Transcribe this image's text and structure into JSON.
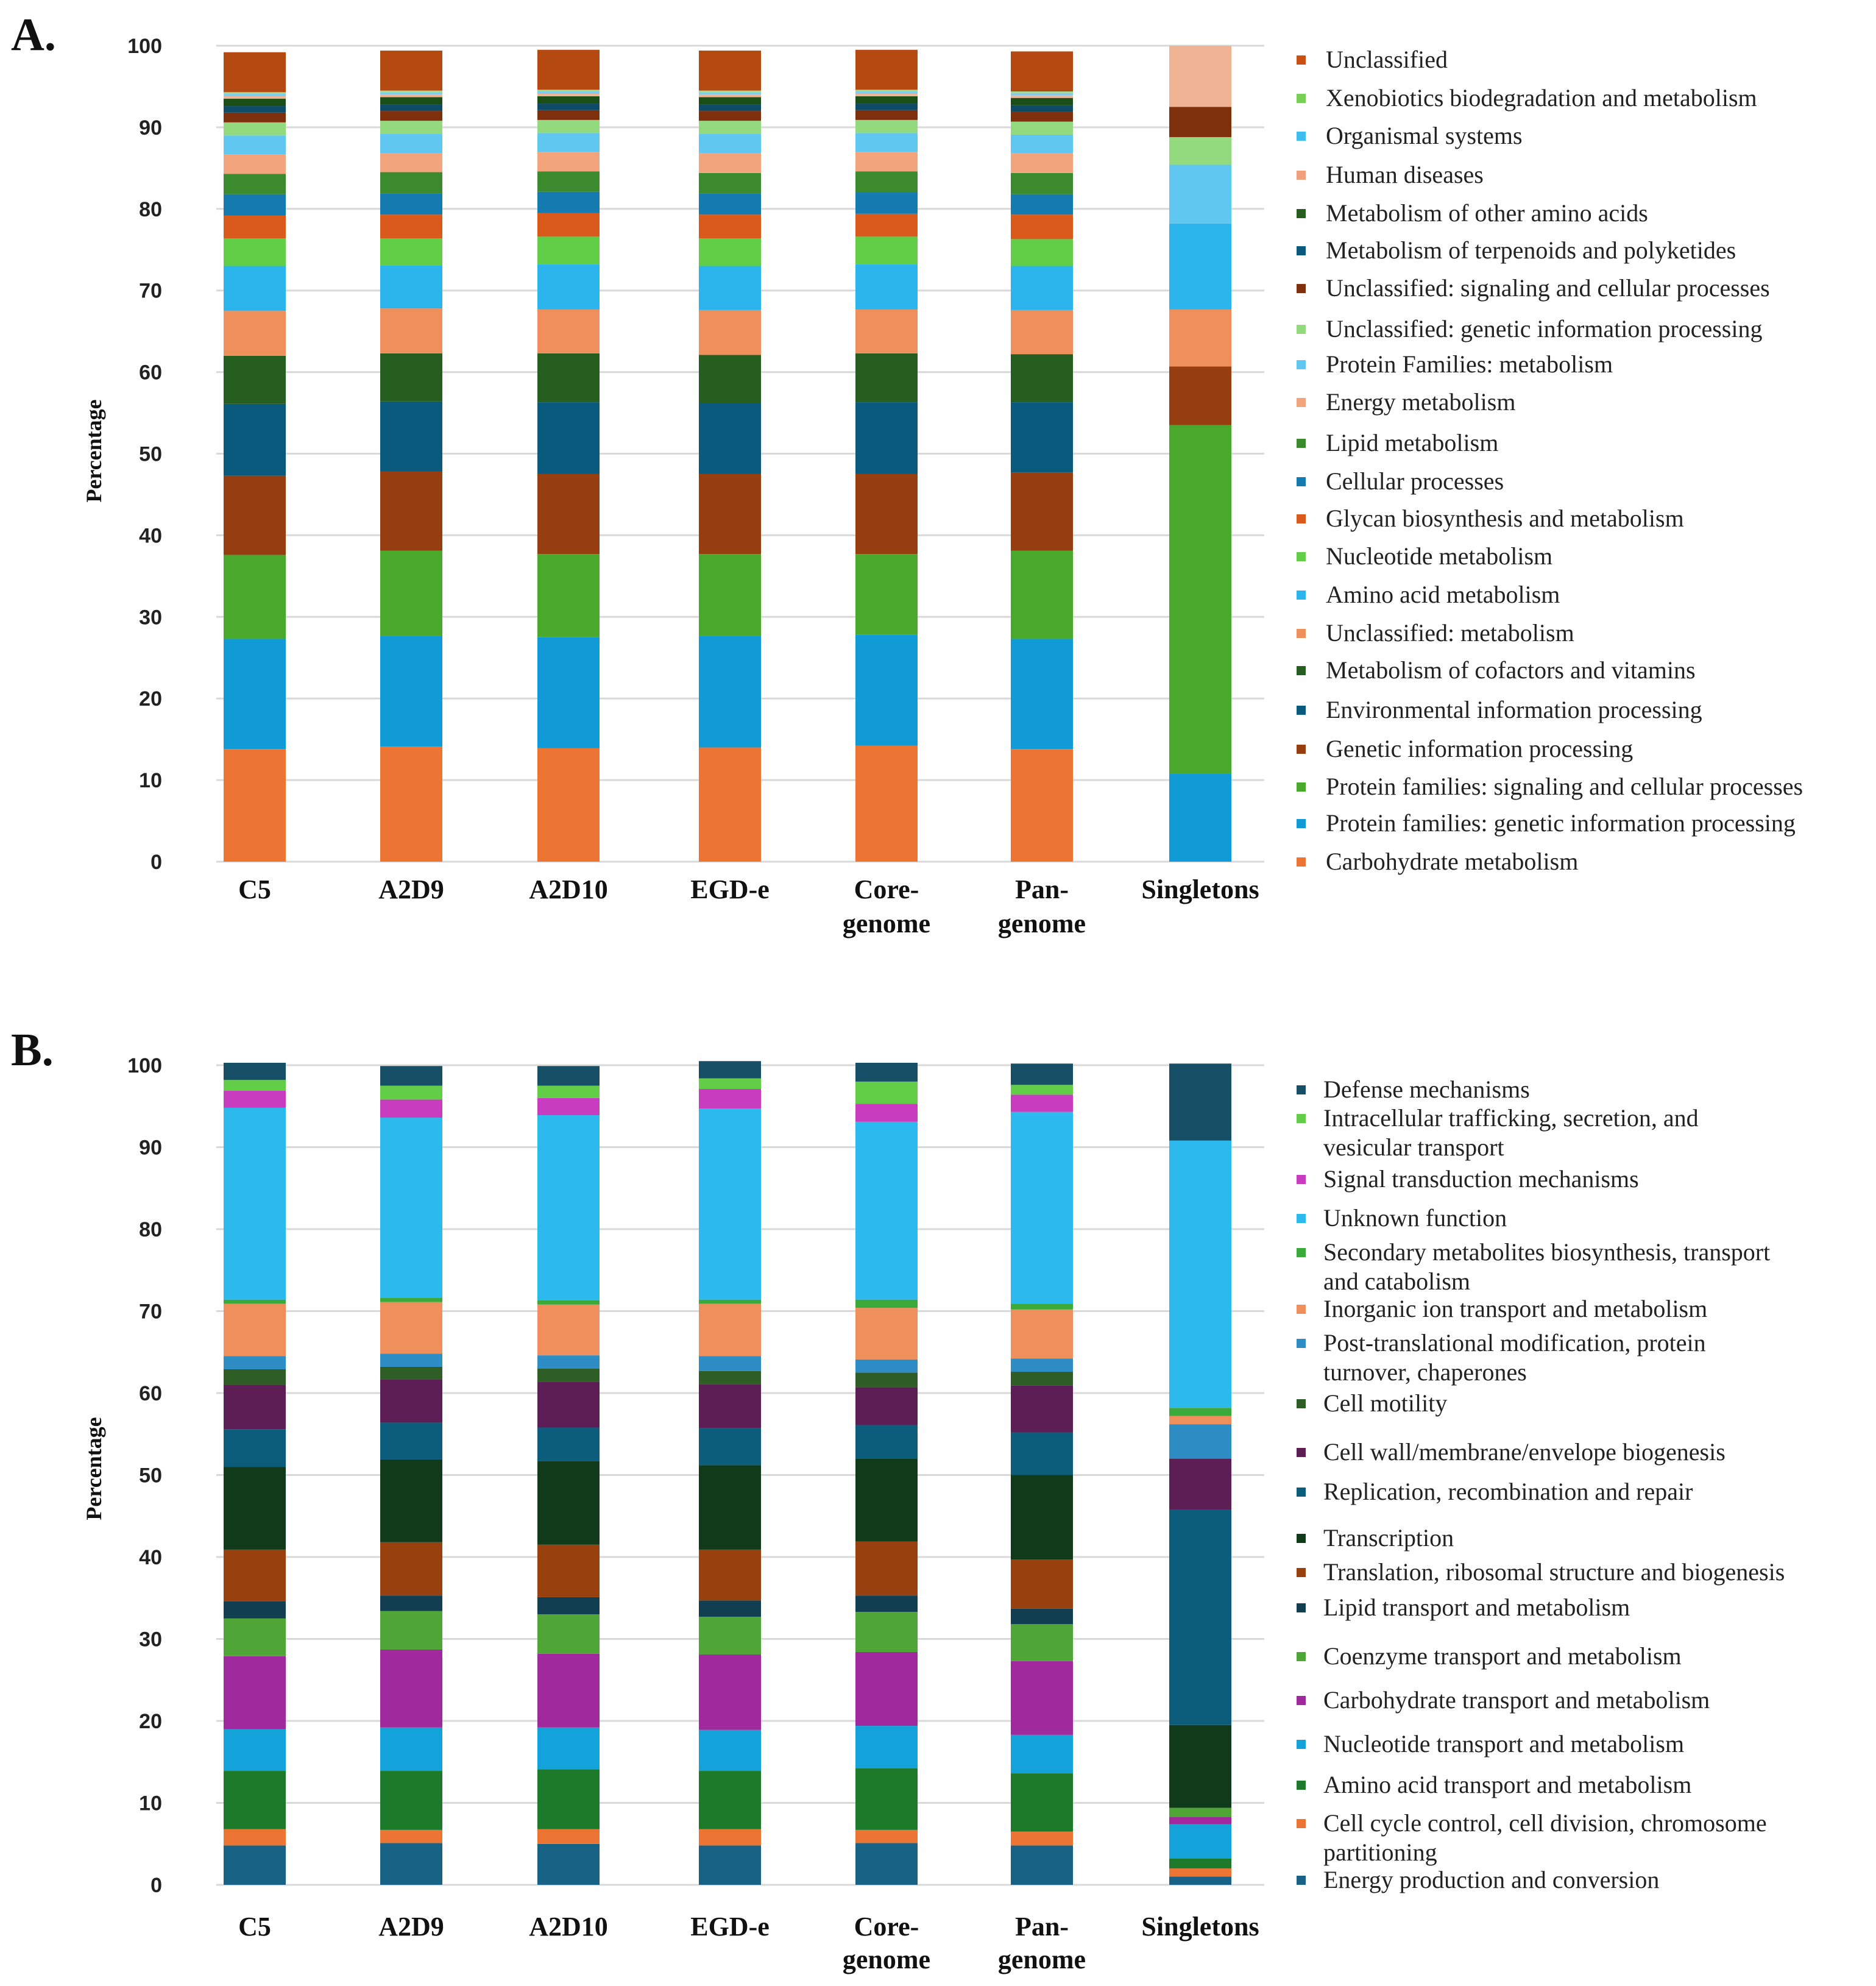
{
  "chart_data": [
    {
      "type": "bar",
      "stacked": true,
      "panel_label": "A.",
      "ylabel": "Percentage",
      "ylim": [
        0,
        100
      ],
      "yticks": [
        "0",
        "10",
        "20",
        "30",
        "40",
        "50",
        "60",
        "70",
        "80",
        "90",
        "100"
      ],
      "grid": true,
      "legend_position": "right",
      "categories": [
        {
          "line1": "C5",
          "line2": ""
        },
        {
          "line1": "A2D9",
          "line2": ""
        },
        {
          "line1": "A2D10",
          "line2": ""
        },
        {
          "line1": "EGD-e",
          "line2": ""
        },
        {
          "line1": "Core-",
          "line2": "genome"
        },
        {
          "line1": "Pan-",
          "line2": "genome"
        },
        {
          "line1": "Singletons",
          "line2": ""
        }
      ],
      "series": [
        {
          "name": "Carbohydrate metabolism",
          "color": "#EC7533",
          "values": [
            13.8,
            14.1,
            13.9,
            14.0,
            14.2,
            13.8,
            0
          ]
        },
        {
          "name": "Protein families: genetic information processing",
          "color": "#119BD6",
          "values": [
            13.5,
            13.6,
            13.6,
            13.7,
            13.6,
            13.5,
            10.8
          ]
        },
        {
          "name": "Protein families: signaling and cellular processes",
          "color": "#4AA82C",
          "values": [
            10.3,
            10.4,
            10.2,
            10.0,
            9.9,
            10.8,
            42.7
          ]
        },
        {
          "name": "Genetic information processing",
          "color": "#963E10",
          "values": [
            9.7,
            9.7,
            9.8,
            9.8,
            9.8,
            9.6,
            7.2
          ]
        },
        {
          "name": "Environmental information processing",
          "color": "#0A5A7E",
          "values": [
            8.8,
            8.6,
            8.8,
            8.7,
            8.8,
            8.6,
            0
          ]
        },
        {
          "name": "Metabolism of cofactors and vitamins",
          "color": "#255E1E",
          "values": [
            5.9,
            5.9,
            6.0,
            5.9,
            6.0,
            5.9,
            0
          ]
        },
        {
          "name": "Unclassified: metabolism",
          "color": "#EE8F5C",
          "values": [
            5.5,
            5.5,
            5.4,
            5.5,
            5.4,
            5.4,
            7.0
          ]
        },
        {
          "name": "Amino acid metabolism",
          "color": "#2BB5EC",
          "values": [
            5.5,
            5.3,
            5.5,
            5.4,
            5.5,
            5.4,
            10.5
          ]
        },
        {
          "name": "Nucleotide metabolism",
          "color": "#62CD47",
          "values": [
            3.4,
            3.3,
            3.4,
            3.4,
            3.4,
            3.3,
            0
          ]
        },
        {
          "name": "Glycan biosynthesis and metabolism",
          "color": "#D95A1A",
          "values": [
            2.8,
            2.9,
            2.9,
            2.9,
            2.8,
            3.0,
            0
          ]
        },
        {
          "name": "Cellular processes",
          "color": "#157AB0",
          "values": [
            2.6,
            2.6,
            2.6,
            2.6,
            2.6,
            2.5,
            0
          ]
        },
        {
          "name": "Lipid metabolism",
          "color": "#3C8A2E",
          "values": [
            2.5,
            2.6,
            2.5,
            2.5,
            2.6,
            2.6,
            0
          ]
        },
        {
          "name": "Energy metabolism",
          "color": "#F2A47C",
          "values": [
            2.4,
            2.3,
            2.4,
            2.4,
            2.4,
            2.4,
            0
          ]
        },
        {
          "name": "Protein Families: metabolism",
          "color": "#60C8F0",
          "values": [
            2.3,
            2.4,
            2.3,
            2.4,
            2.3,
            2.3,
            7.2
          ]
        },
        {
          "name": "Unclassified: genetic information processing",
          "color": "#93D97D",
          "values": [
            1.6,
            1.6,
            1.6,
            1.6,
            1.6,
            1.6,
            3.4
          ]
        },
        {
          "name": "Unclassified: signaling and cellular processes",
          "color": "#7E2F0C",
          "values": [
            1.2,
            1.2,
            1.2,
            1.2,
            1.2,
            1.2,
            3.7
          ]
        },
        {
          "name": "Metabolism of terpenoids and polyketides",
          "color": "#0E4B66",
          "values": [
            0.8,
            0.8,
            0.8,
            0.8,
            0.8,
            0.8,
            0
          ]
        },
        {
          "name": "Metabolism of other amino acids",
          "color": "#1B4D16",
          "values": [
            0.9,
            0.9,
            0.9,
            0.9,
            0.9,
            0.9,
            0
          ]
        },
        {
          "name": "Human diseases",
          "color": "#F0B394",
          "values": [
            0.3,
            0.3,
            0.3,
            0.3,
            0.3,
            0.3,
            7.5
          ]
        },
        {
          "name": "Organismal systems",
          "color": "#80CCEB",
          "values": [
            0.3,
            0.3,
            0.3,
            0.3,
            0.3,
            0.3,
            0
          ]
        },
        {
          "name": "Xenobiotics biodegradation and metabolism",
          "color": "#A6DA8C",
          "values": [
            0.2,
            0.2,
            0.2,
            0.2,
            0.2,
            0.2,
            0
          ]
        },
        {
          "name": "Unclassified",
          "color": "#B44A12",
          "values": [
            4.9,
            4.9,
            4.9,
            4.9,
            4.9,
            4.9,
            0
          ]
        }
      ]
    },
    {
      "type": "bar",
      "stacked": true,
      "panel_label": "B.",
      "ylabel": "Percentage",
      "ylim": [
        0,
        100
      ],
      "yticks": [
        "0",
        "10",
        "20",
        "30",
        "40",
        "50",
        "60",
        "70",
        "80",
        "90",
        "100"
      ],
      "grid": true,
      "legend_position": "right",
      "categories": [
        {
          "line1": "C5",
          "line2": ""
        },
        {
          "line1": "A2D9",
          "line2": ""
        },
        {
          "line1": "A2D10",
          "line2": ""
        },
        {
          "line1": "EGD-e",
          "line2": ""
        },
        {
          "line1": "Core-",
          "line2": "genome"
        },
        {
          "line1": "Pan-",
          "line2": "genome"
        },
        {
          "line1": "Singletons",
          "line2": ""
        }
      ],
      "series": [
        {
          "name": "Energy production and conversion",
          "color": "#176285",
          "values": [
            4.8,
            5.1,
            5.0,
            4.8,
            5.1,
            4.8,
            1.0
          ]
        },
        {
          "name": "Cell cycle control, cell division, chromosome partitioning",
          "color": "#EC7533",
          "values": [
            2.0,
            1.6,
            1.8,
            2.0,
            1.6,
            1.7,
            1.0
          ]
        },
        {
          "name": "Amino acid transport and metabolism",
          "color": "#1E7A2B",
          "values": [
            7.1,
            7.2,
            7.3,
            7.1,
            7.5,
            7.1,
            1.2
          ]
        },
        {
          "name": "Nucleotide transport and metabolism",
          "color": "#13A2DA",
          "values": [
            5.1,
            5.3,
            5.1,
            5.0,
            5.2,
            4.7,
            4.2
          ]
        },
        {
          "name": "Carbohydrate  transport  and  metabolism",
          "color": "#A0299E",
          "values": [
            8.9,
            9.5,
            9.0,
            9.2,
            9.0,
            9.0,
            0.9
          ]
        },
        {
          "name": "Coenzyme transport and metabolism",
          "color": "#4FA637",
          "values": [
            4.6,
            4.7,
            4.8,
            4.6,
            4.9,
            4.5,
            1.1
          ]
        },
        {
          "name": "Lipid transport and metabolism",
          "color": "#123E52",
          "values": [
            2.1,
            1.9,
            2.1,
            2.0,
            2.0,
            1.9,
            0
          ]
        },
        {
          "name": "Translation, ribosomal structure and biogenesis",
          "color": "#98410F",
          "values": [
            6.3,
            6.5,
            6.4,
            6.2,
            6.6,
            6.0,
            0
          ]
        },
        {
          "name": "Transcription",
          "color": "#113A1A",
          "values": [
            10.1,
            10.1,
            10.2,
            10.3,
            10.1,
            10.3,
            10.1
          ]
        },
        {
          "name": "Replication, recombination and repair",
          "color": "#0C5C7C",
          "values": [
            4.6,
            4.5,
            4.1,
            4.5,
            4.1,
            5.2,
            26.3
          ]
        },
        {
          "name": "Cell wall/membrane/envelope biogenesis",
          "color": "#5C1E55",
          "values": [
            5.4,
            5.3,
            5.6,
            5.4,
            4.6,
            5.7,
            6.2
          ]
        },
        {
          "name": "Cell motility",
          "color": "#2E5E26",
          "values": [
            1.9,
            1.5,
            1.6,
            1.6,
            1.8,
            1.7,
            0
          ]
        },
        {
          "name": "Post-translational modification, protein turnover, chaperones",
          "color": "#2D8DC4",
          "values": [
            1.6,
            1.6,
            1.6,
            1.8,
            1.6,
            1.6,
            4.2
          ]
        },
        {
          "name": "Inorganic ion transport and metabolism",
          "color": "#EE8F5C",
          "values": [
            6.4,
            6.3,
            6.2,
            6.4,
            6.3,
            6.0,
            1.0
          ]
        },
        {
          "name": "Secondary metabolites biosynthesis, transport and catabolism",
          "color": "#3BAA3B",
          "values": [
            0.5,
            0.5,
            0.5,
            0.5,
            1.0,
            0.7,
            1.0
          ]
        },
        {
          "name": "Unknown function",
          "color": "#2BB9EE",
          "values": [
            23.4,
            22.0,
            22.6,
            23.3,
            21.7,
            23.4,
            32.6
          ]
        },
        {
          "name": "Signal transduction mechanisms",
          "color": "#C83DC0",
          "values": [
            2.1,
            2.2,
            2.1,
            2.4,
            2.2,
            2.1,
            0
          ]
        },
        {
          "name": "Intracellular trafficking, secretion, and vesicular transport",
          "color": "#62CD47",
          "values": [
            1.3,
            1.7,
            1.5,
            1.3,
            2.7,
            1.2,
            0
          ]
        },
        {
          "name": "Defense mechanisms",
          "color": "#174F66",
          "values": [
            2.1,
            2.4,
            2.4,
            2.1,
            2.3,
            2.6,
            9.4
          ]
        }
      ]
    }
  ],
  "legend_a": [
    {
      "label": "Unclassified",
      "color": "#C94F13"
    },
    {
      "label": "Xenobiotics biodegradation and metabolism",
      "color": "#77CF55"
    },
    {
      "label": "Organismal systems",
      "color": "#3EBDEE"
    },
    {
      "label": "Human diseases",
      "color": "#F0A07A"
    },
    {
      "label": "Metabolism of other amino acids",
      "color": "#255E1E"
    },
    {
      "label": "Metabolism of terpenoids and polyketides",
      "color": "#0A5A7E"
    },
    {
      "label": "Unclassified: signaling and cellular processes",
      "color": "#7E2F0C"
    },
    {
      "label": "Unclassified: genetic information processing",
      "color": "#93D97D"
    },
    {
      "label": "Protein Families: metabolism",
      "color": "#60C8F0"
    },
    {
      "label": "Energy metabolism",
      "color": "#F2A47C"
    },
    {
      "label": "Lipid metabolism",
      "color": "#3C8A2E"
    },
    {
      "label": "Cellular processes",
      "color": "#157AB0"
    },
    {
      "label": "Glycan biosynthesis and metabolism",
      "color": "#D95A1A"
    },
    {
      "label": "Nucleotide metabolism",
      "color": "#62CD47"
    },
    {
      "label": "Amino acid metabolism",
      "color": "#2BB5EC"
    },
    {
      "label": "Unclassified: metabolism",
      "color": "#EE8F5C"
    },
    {
      "label": "Metabolism of cofactors and vitamins",
      "color": "#255E1E"
    },
    {
      "label": "Environmental information processing",
      "color": "#0A5A7E"
    },
    {
      "label": "Genetic information processing",
      "color": "#963E10"
    },
    {
      "label": "Protein families: signaling and cellular processes",
      "color": "#4AA82C"
    },
    {
      "label": "Protein families: genetic information processing",
      "color": "#119BD6"
    },
    {
      "label": "Carbohydrate metabolism",
      "color": "#EC7533"
    }
  ],
  "legend_b": [
    {
      "lines": [
        "Defense mechanisms"
      ],
      "color": "#174F66"
    },
    {
      "lines": [
        "Intracellular trafficking, secretion, and",
        "vesicular transport"
      ],
      "color": "#62CD47"
    },
    {
      "lines": [
        "Signal transduction mechanisms"
      ],
      "color": "#C83DC0"
    },
    {
      "lines": [
        "Unknown function"
      ],
      "color": "#2BB9EE"
    },
    {
      "lines": [
        "Secondary metabolites biosynthesis, transport",
        "and catabolism"
      ],
      "color": "#3BAA3B"
    },
    {
      "lines": [
        "Inorganic ion transport and metabolism"
      ],
      "color": "#EE8F5C"
    },
    {
      "lines": [
        "Post-translational modification, protein",
        "turnover, chaperones"
      ],
      "color": "#2D8DC4"
    },
    {
      "lines": [
        "Cell motility"
      ],
      "color": "#2E5E26"
    },
    {
      "lines": [
        "Cell wall/membrane/envelope biogenesis"
      ],
      "color": "#5C1E55"
    },
    {
      "lines": [
        "Replication, recombination and repair"
      ],
      "color": "#0C5C7C"
    },
    {
      "lines": [
        "Transcription"
      ],
      "color": "#113A1A"
    },
    {
      "lines": [
        "Translation, ribosomal structure and biogenesis"
      ],
      "color": "#98410F"
    },
    {
      "lines": [
        "Lipid transport and metabolism"
      ],
      "color": "#123E52"
    },
    {
      "lines": [
        "Coenzyme transport and metabolism"
      ],
      "color": "#4FA637"
    },
    {
      "lines": [
        "Carbohydrate  transport  and  metabolism"
      ],
      "color": "#A0299E"
    },
    {
      "lines": [
        "Nucleotide transport and metabolism"
      ],
      "color": "#13A2DA"
    },
    {
      "lines": [
        "Amino acid transport and metabolism"
      ],
      "color": "#1E7A2B"
    },
    {
      "lines": [
        "Cell cycle control, cell division, chromosome",
        "partitioning"
      ],
      "color": "#EC7533"
    },
    {
      "lines": [
        "Energy production and conversion"
      ],
      "color": "#176285"
    }
  ]
}
